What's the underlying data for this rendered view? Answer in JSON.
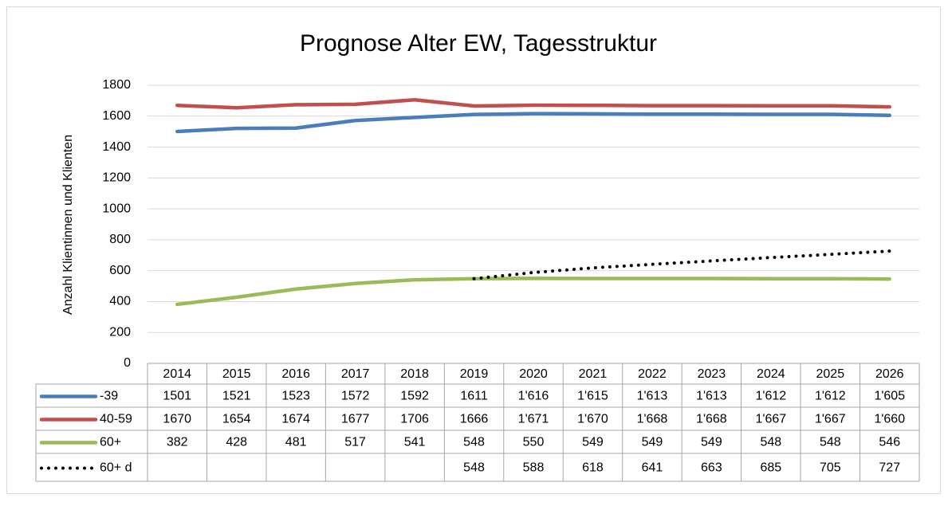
{
  "chart_data": {
    "type": "line",
    "title": "Prognose Alter EW, Tagesstruktur",
    "y_label": "Anzahl Klientinnen und Klienten",
    "categories": [
      "2014",
      "2015",
      "2016",
      "2017",
      "2018",
      "2019",
      "2020",
      "2021",
      "2022",
      "2023",
      "2024",
      "2025",
      "2026"
    ],
    "ylim": [
      0,
      1800
    ],
    "yticks": [
      0,
      200,
      400,
      600,
      800,
      1000,
      1200,
      1400,
      1600,
      1800
    ],
    "grid": true,
    "series": [
      {
        "name": "-39",
        "color": "#4a7ebb",
        "dash": "solid",
        "values": [
          1501,
          1521,
          1523,
          1572,
          1592,
          1611,
          1616,
          1615,
          1613,
          1613,
          1612,
          1612,
          1605
        ],
        "value_labels": [
          "1501",
          "1521",
          "1523",
          "1572",
          "1592",
          "1611",
          "1'616",
          "1'615",
          "1'613",
          "1'613",
          "1'612",
          "1'612",
          "1'605"
        ]
      },
      {
        "name": "40-59",
        "color": "#c0504d",
        "dash": "solid",
        "values": [
          1670,
          1654,
          1674,
          1677,
          1706,
          1666,
          1671,
          1670,
          1668,
          1668,
          1667,
          1667,
          1660
        ],
        "value_labels": [
          "1670",
          "1654",
          "1674",
          "1677",
          "1706",
          "1666",
          "1'671",
          "1'670",
          "1'668",
          "1'668",
          "1'667",
          "1'667",
          "1'660"
        ]
      },
      {
        "name": "60+",
        "color": "#9bbb59",
        "dash": "solid",
        "values": [
          382,
          428,
          481,
          517,
          541,
          548,
          550,
          549,
          549,
          549,
          548,
          548,
          546
        ]
      },
      {
        "name": "60+ d",
        "color": "#000000",
        "dash": "dotted",
        "values": [
          null,
          null,
          null,
          null,
          null,
          548,
          588,
          618,
          641,
          663,
          685,
          705,
          727
        ]
      }
    ]
  }
}
